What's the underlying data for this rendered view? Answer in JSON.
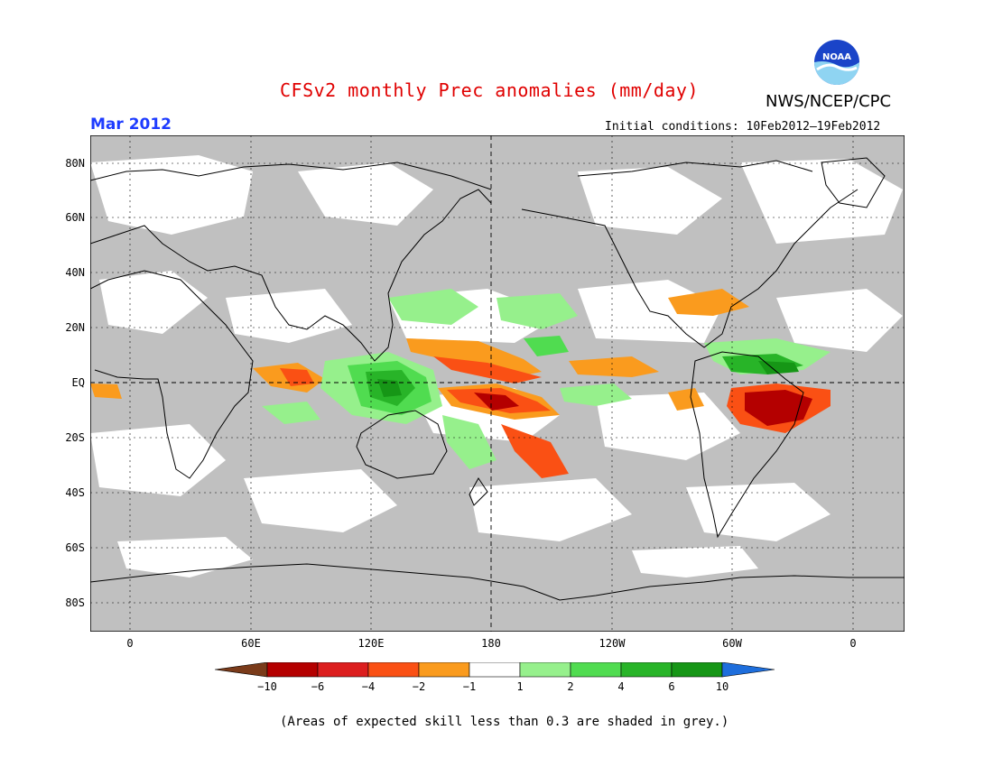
{
  "header": {
    "title": "CFSv2 monthly Prec anomalies (mm/day)",
    "org": "NWS/NCEP/CPC",
    "month": "Mar 2012",
    "initial_conditions": "Initial conditions: 10Feb2012–19Feb2012",
    "logo_text": "NOAA"
  },
  "map": {
    "lat_labels": [
      "80N",
      "60N",
      "40N",
      "20N",
      "EQ",
      "20S",
      "40S",
      "60S",
      "80S"
    ],
    "lon_labels": [
      "0",
      "60E",
      "120E",
      "180",
      "120W",
      "60W",
      "0"
    ],
    "land_color": "#c0c0c0",
    "no_data_color": "#ffffff"
  },
  "colorbar": {
    "labels": [
      "−10",
      "−6",
      "−4",
      "−2",
      "−1",
      "1",
      "2",
      "4",
      "6",
      "10"
    ],
    "colors": [
      "#7a3b1a",
      "#b40000",
      "#dc1e1e",
      "#fa5014",
      "#fa9b1e",
      "#ffffff",
      "#96f08c",
      "#50dc50",
      "#28b428",
      "#169616",
      "#1e6edc"
    ]
  },
  "footer": {
    "note": "(Areas of expected skill less than 0.3 are shaded in grey.)"
  }
}
